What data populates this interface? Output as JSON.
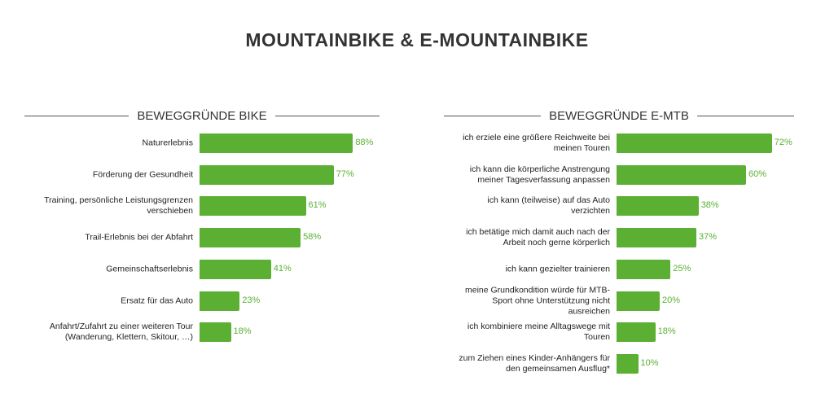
{
  "title": "MOUNTAINBIKE & E-MOUNTAINBIKE",
  "colors": {
    "bar": "#5bb033",
    "value": "#5bb033"
  },
  "chart_data": [
    {
      "type": "bar",
      "orientation": "horizontal",
      "title": "BEWEGGRÜNDE BIKE",
      "unit": "%",
      "categories": [
        "Naturerlebnis",
        "Förderung der Gesundheit",
        "Training, persönliche Leistungsgrenzen verschieben",
        "Trail-Erlebnis bei der Abfahrt",
        "Gemeinschaftserlebnis",
        "Ersatz für das Auto",
        "Anfahrt/Zufahrt zu einer weiteren Tour (Wanderung, Klettern, Skitour, …)"
      ],
      "values": [
        88,
        77,
        61,
        58,
        41,
        23,
        18
      ],
      "labels": [
        "88%",
        "77%",
        "61%",
        "58%",
        "41%",
        "23%",
        "18%"
      ]
    },
    {
      "type": "bar",
      "orientation": "horizontal",
      "title": "BEWEGGRÜNDE E-MTB",
      "unit": "%",
      "categories": [
        "ich erziele eine größere Reichweite bei meinen Touren",
        "ich kann die körperliche Anstrengung meiner Tagesverfassung anpassen",
        "ich kann (teilweise) auf das Auto verzichten",
        "ich betätige mich damit auch nach der Arbeit noch gerne körperlich",
        "ich kann gezielter trainieren",
        "meine Grundkondition würde für MTB-Sport ohne Unterstützung nicht ausreichen",
        "ich kombiniere meine Alltagswege mit Touren",
        "zum Ziehen eines Kinder-Anhängers für den gemeinsamen Ausflug*"
      ],
      "values": [
        72,
        60,
        38,
        37,
        25,
        20,
        18,
        10
      ],
      "labels": [
        "72%",
        "60%",
        "38%",
        "37%",
        "25%",
        "20%",
        "18%",
        "10%"
      ]
    }
  ]
}
